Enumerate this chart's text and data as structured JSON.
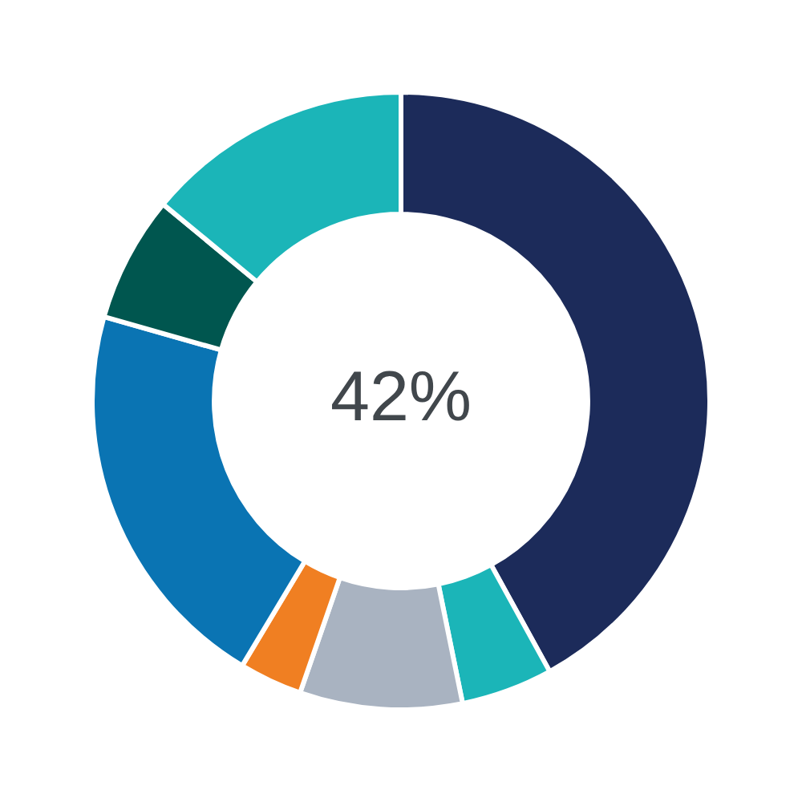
{
  "chart_data": {
    "type": "donut",
    "annotations": [
      "42%"
    ],
    "categories": [
      null,
      null,
      null,
      null,
      null,
      null,
      null
    ],
    "values": [
      42,
      4.8,
      8.5,
      3.3,
      20.8,
      6.6,
      14.0
    ],
    "colors": [
      "#1c2b5a",
      "#1bb5b8",
      "#a9b3c1",
      "#f07f22",
      "#0a74b3",
      "#00564f",
      "#1bb5b8"
    ]
  }
}
